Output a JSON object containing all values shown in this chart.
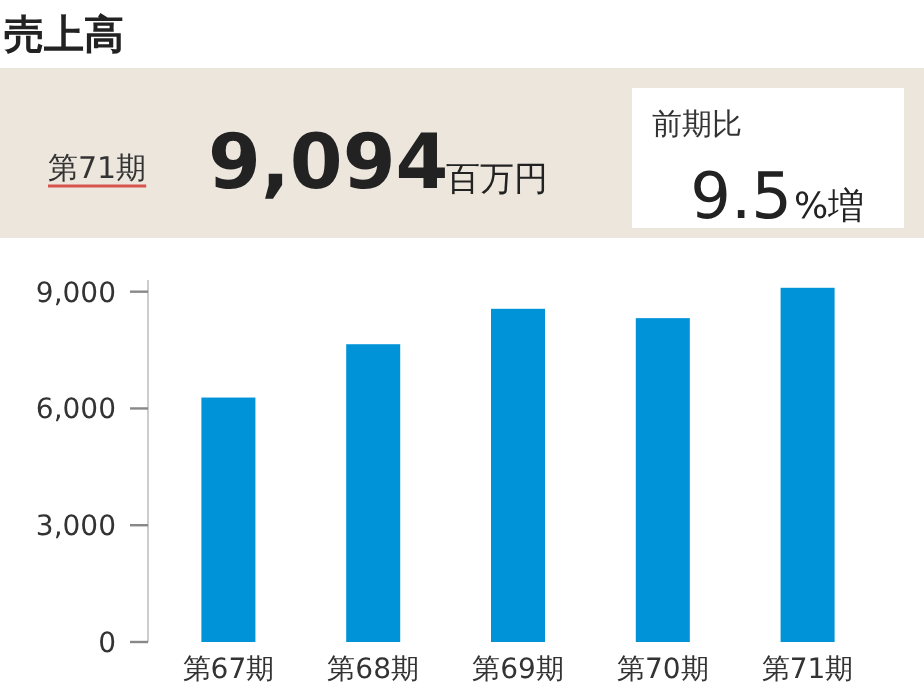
{
  "chart_data": {
    "type": "bar",
    "title": "売上高",
    "annotations": [
      "第71期",
      "9,094",
      "百万円",
      "前期比",
      "9.5",
      "%増"
    ],
    "categories": [
      "第67期",
      "第68期",
      "第69期",
      "第70期",
      "第71期"
    ],
    "values": [
      6280,
      7650,
      8560,
      8320,
      9100
    ],
    "color": "#0093d8",
    "ylim": [
      0,
      9300
    ],
    "yticks": [
      {
        "value": 0,
        "label": "0"
      },
      {
        "value": 3000,
        "label": "3,000"
      },
      {
        "value": 6000,
        "label": "6,000"
      },
      {
        "value": 9000,
        "label": "9,000"
      }
    ]
  }
}
